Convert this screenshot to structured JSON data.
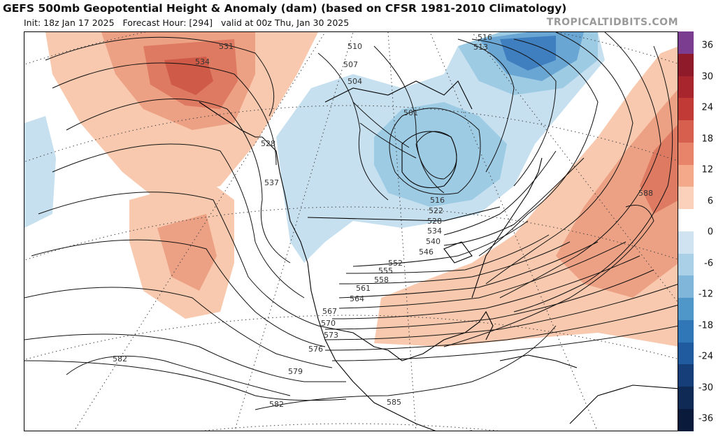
{
  "header": {
    "title": "GEFS 500mb Geopotential Height & Anomaly (dam) (based on CFSR 1981-2010 Climatology)",
    "init": "Init: 18z Jan 17 2025",
    "forecast_hour": "Forecast Hour: [294]",
    "valid": "valid at 00z Thu, Jan 30 2025",
    "brand": "TROPICALTIDBITS.COM"
  },
  "colorbar": {
    "tick_labels": [
      "36",
      "30",
      "24",
      "18",
      "12",
      "6",
      "0",
      "-6",
      "-12",
      "-18",
      "-24",
      "-30",
      "-36"
    ],
    "colors": [
      "#7b3d8f",
      "#8e1a2a",
      "#a8252e",
      "#c23a36",
      "#d6604d",
      "#e7846a",
      "#f3a98a",
      "#fbd1bb",
      "#ffffff",
      "#cfe4f0",
      "#a9d0e6",
      "#7fb6d9",
      "#4f97c9",
      "#2f77b6",
      "#1f5b9e",
      "#163f7a",
      "#0f2a55",
      "#0a1a3a"
    ]
  },
  "map": {
    "anomaly_colors": {
      "warm_light": "#f8c9ae",
      "warm_mid": "#eda184",
      "warm_strong": "#df7a62",
      "warm_max": "#cf5a47",
      "cold_light": "#c6e0ef",
      "cold_mid": "#9ecbe4",
      "cold_strong": "#6aa6d4",
      "cold_max": "#3f7fbf"
    },
    "contour_labels": [
      "531",
      "534",
      "510",
      "516",
      "513",
      "507",
      "504",
      "501",
      "528",
      "537",
      "516",
      "522",
      "528",
      "534",
      "540",
      "546",
      "552",
      "555",
      "558",
      "561",
      "564",
      "567",
      "570",
      "573",
      "576",
      "579",
      "582",
      "582",
      "585",
      "588"
    ]
  }
}
